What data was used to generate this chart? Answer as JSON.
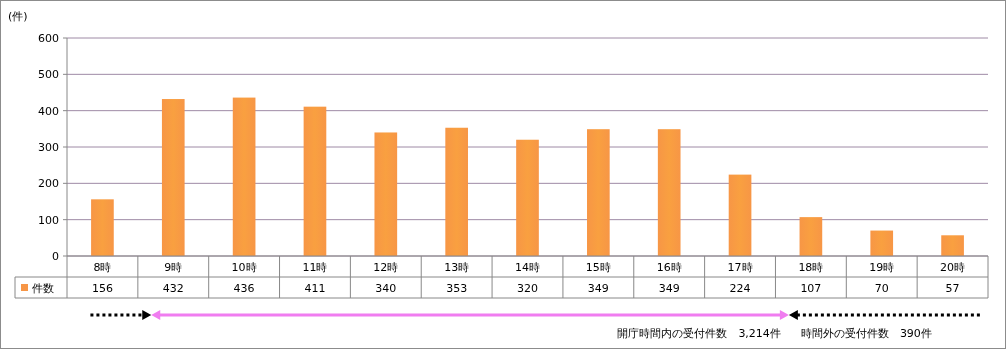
{
  "chart_data": {
    "type": "bar",
    "ylabel": "(件)",
    "categories": [
      "8時",
      "9時",
      "10時",
      "11時",
      "12時",
      "13時",
      "14時",
      "15時",
      "16時",
      "17時",
      "18時",
      "19時",
      "20時"
    ],
    "series": [
      {
        "name": "件数",
        "color": "#f79646",
        "values": [
          156,
          432,
          436,
          411,
          340,
          353,
          320,
          349,
          349,
          224,
          107,
          70,
          57
        ]
      }
    ],
    "ylim": [
      0,
      600
    ],
    "yticks": [
      0,
      100,
      200,
      300,
      400,
      500,
      600
    ],
    "grid": "y",
    "legend": "bottom left",
    "data_labels": true,
    "annotations": [
      "開庁時間内の受付件数　3,214件",
      "時間外の受付件数　390件"
    ]
  }
}
